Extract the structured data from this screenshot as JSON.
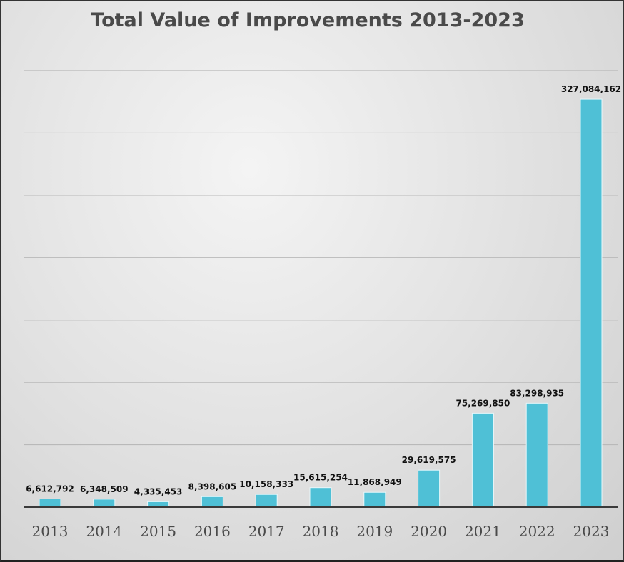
{
  "chart_data": {
    "type": "bar",
    "title": "Total Value of Improvements 2013-2023",
    "xlabel": "",
    "ylabel": "",
    "ylim": [
      0,
      350000000
    ],
    "grid": true,
    "categories": [
      "2013",
      "2014",
      "2015",
      "2016",
      "2017",
      "2018",
      "2019",
      "2020",
      "2021",
      "2022",
      "2023"
    ],
    "values": [
      6612792,
      6348509,
      4335453,
      8398605,
      10158333,
      15615254,
      11868949,
      29619575,
      75269850,
      83298935,
      327084162
    ],
    "data_labels": [
      "6,612,792",
      "6,348,509",
      "4,335,453",
      "8,398,605",
      "10,158,333",
      "15,615,254",
      "11,868,949",
      "29,619,575",
      "75,269,850",
      "83,298,935",
      "327,084,162"
    ],
    "colors": {
      "bar": "#4fc0d6",
      "title": "#4a4a4a",
      "gridline": "#b9b9b9"
    }
  }
}
